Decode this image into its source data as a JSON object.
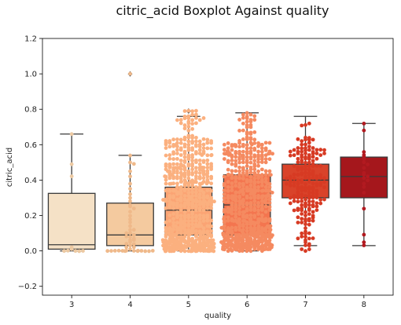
{
  "chart_data": {
    "type": "boxplot",
    "title": "citric_acid Boxplot Against quality",
    "xlabel": "quality",
    "ylabel": "citric_acid",
    "categories": [
      "3",
      "4",
      "5",
      "6",
      "7",
      "8"
    ],
    "ylim": [
      -0.25,
      1.2
    ],
    "yticks": [
      -0.2,
      0.0,
      0.2,
      0.4,
      0.6,
      0.8,
      1.0,
      1.2
    ],
    "ytick_labels": [
      "−0.2",
      "0.0",
      "0.2",
      "0.4",
      "0.6",
      "0.8",
      "1.0",
      "1.2"
    ],
    "grid": false,
    "overlay": "swarm",
    "boxes": [
      {
        "category": "3",
        "color": "#f5e1c6",
        "whisker_low": 0.0,
        "q1": 0.01,
        "median": 0.035,
        "q3": 0.325,
        "whisker_high": 0.66,
        "outliers": []
      },
      {
        "category": "4",
        "color": "#f4ca9f",
        "whisker_low": 0.0,
        "q1": 0.03,
        "median": 0.09,
        "q3": 0.27,
        "whisker_high": 0.54,
        "outliers": [
          1.0
        ]
      },
      {
        "category": "5",
        "color": "#fba474",
        "whisker_low": 0.0,
        "q1": 0.09,
        "median": 0.23,
        "q3": 0.36,
        "whisker_high": 0.76,
        "outliers": [
          0.79
        ]
      },
      {
        "category": "6",
        "color": "#f4754f",
        "whisker_low": 0.0,
        "q1": 0.09,
        "median": 0.26,
        "q3": 0.43,
        "whisker_high": 0.78,
        "outliers": []
      },
      {
        "category": "7",
        "color": "#d9432a",
        "whisker_low": 0.03,
        "q1": 0.3,
        "median": 0.4,
        "q3": 0.49,
        "whisker_high": 0.76,
        "outliers": [
          0.01,
          0.015,
          0.02,
          0.0,
          0.05,
          0.08,
          0.1,
          0.12,
          0.14,
          0.16,
          0.18,
          0.2,
          0.24,
          0.25,
          0.26,
          0.28
        ]
      },
      {
        "category": "8",
        "color": "#a5171c",
        "whisker_low": 0.03,
        "q1": 0.3,
        "median": 0.42,
        "q3": 0.53,
        "whisker_high": 0.72,
        "outliers": []
      }
    ],
    "swarm": [
      {
        "category": "3",
        "color": "#ecc9a2",
        "values": [
          0.66,
          0.49,
          0.42,
          0.02,
          0.01,
          0.0,
          0.0,
          0.0,
          0.0,
          0.0
        ]
      },
      {
        "category": "4",
        "color": "#efb98a",
        "values": [
          1.0,
          0.54,
          0.5,
          0.49,
          0.45,
          0.42,
          0.38,
          0.35,
          0.3,
          0.28,
          0.25,
          0.22,
          0.2,
          0.18,
          0.16,
          0.14,
          0.12,
          0.1,
          0.09,
          0.08,
          0.07,
          0.06,
          0.05,
          0.04,
          0.03,
          0.02,
          0.01,
          0.0,
          0.0,
          0.0,
          0.0,
          0.0,
          0.0,
          0.0,
          0.0,
          0.0,
          0.0,
          0.0,
          0.0,
          0.0,
          0.0,
          0.02,
          0.04,
          0.06,
          0.08,
          0.1,
          0.12,
          0.24,
          0.26,
          0.32
        ]
      },
      {
        "category": "5",
        "color": "#fbb07f",
        "distribution": "dense",
        "count": 681,
        "range": [
          0.0,
          0.79
        ]
      },
      {
        "category": "6",
        "color": "#f58a60",
        "distribution": "dense",
        "count": 638,
        "range": [
          0.0,
          0.78
        ]
      },
      {
        "category": "7",
        "color": "#d73a23",
        "distribution": "medium",
        "count": 199,
        "range": [
          0.0,
          0.76
        ]
      },
      {
        "category": "8",
        "color": "#b21a20",
        "values": [
          0.72,
          0.68,
          0.56,
          0.54,
          0.53,
          0.52,
          0.5,
          0.49,
          0.47,
          0.44,
          0.43,
          0.42,
          0.41,
          0.4,
          0.38,
          0.36,
          0.33,
          0.24,
          0.09,
          0.05,
          0.03
        ]
      }
    ]
  }
}
